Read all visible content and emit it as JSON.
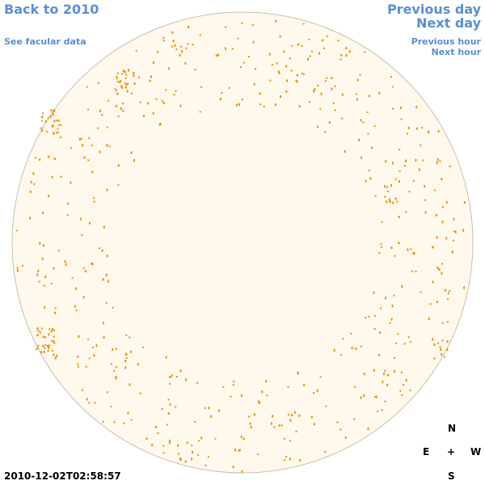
{
  "nav": {
    "back": "Back to 2010",
    "previous_day": "Previous day",
    "next_day": "Next day",
    "facular_data": "See facular data",
    "previous_hour": "Previous hour",
    "next_hour": "Next hour"
  },
  "compass": {
    "north": "N",
    "east": "E",
    "center": "+",
    "west": "W",
    "south": "S"
  },
  "timestamp": "2010-12-02T02:58:57"
}
